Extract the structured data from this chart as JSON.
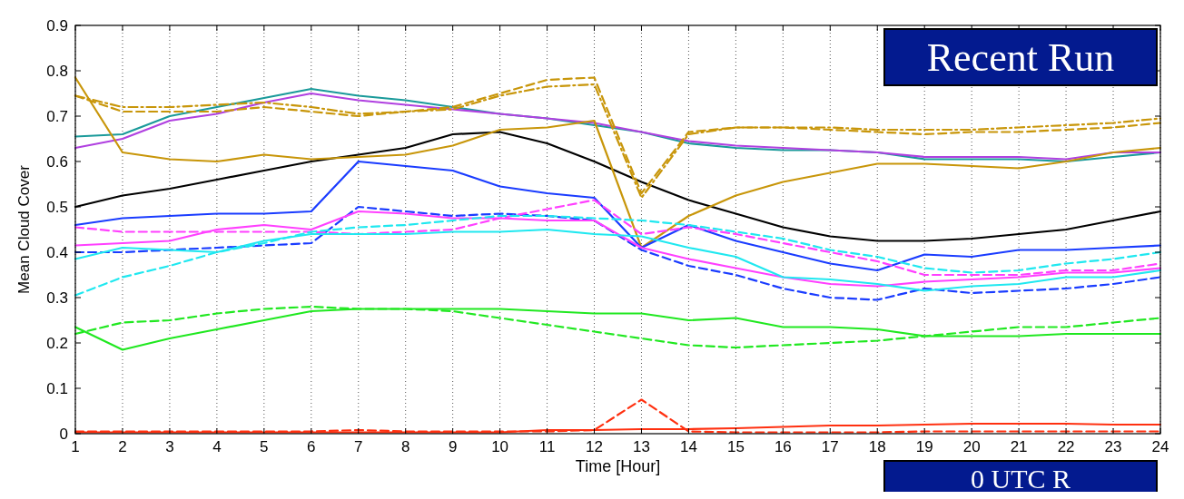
{
  "chart_data": {
    "type": "line",
    "xlabel": "Time [Hour]",
    "ylabel": "Mean Cloud Cover",
    "x": [
      1,
      2,
      3,
      4,
      5,
      6,
      7,
      8,
      9,
      10,
      11,
      12,
      13,
      14,
      15,
      16,
      17,
      18,
      19,
      20,
      21,
      22,
      23,
      24
    ],
    "xlim": [
      1,
      24
    ],
    "xticks": [
      1,
      2,
      3,
      4,
      5,
      6,
      7,
      8,
      9,
      10,
      11,
      12,
      13,
      14,
      15,
      16,
      17,
      18,
      19,
      20,
      21,
      22,
      23,
      24
    ],
    "ylim": [
      0,
      0.9
    ],
    "yticks": [
      0,
      0.1,
      0.2,
      0.3,
      0.4,
      0.5,
      0.6,
      0.7,
      0.8,
      0.9
    ],
    "grid": "x",
    "marker": "none",
    "annotations": [
      "Recent Run",
      "0 UTC R"
    ],
    "series": [
      {
        "color": "#000000",
        "line_style": "solid",
        "values": [
          0.5,
          0.525,
          0.54,
          0.56,
          0.58,
          0.6,
          0.615,
          0.63,
          0.66,
          0.665,
          0.64,
          0.6,
          0.555,
          0.515,
          0.485,
          0.455,
          0.435,
          0.425,
          0.425,
          0.43,
          0.44,
          0.45,
          0.47,
          0.49
        ]
      },
      {
        "color": "#1a9a9a",
        "line_style": "solid",
        "values": [
          0.655,
          0.66,
          0.7,
          0.72,
          0.74,
          0.76,
          0.745,
          0.735,
          0.72,
          0.705,
          0.695,
          0.68,
          0.665,
          0.64,
          0.63,
          0.625,
          0.625,
          0.62,
          0.605,
          0.605,
          0.605,
          0.6,
          0.61,
          0.62
        ]
      },
      {
        "color": "#b040e0",
        "line_style": "solid",
        "values": [
          0.63,
          0.65,
          0.69,
          0.705,
          0.73,
          0.75,
          0.735,
          0.725,
          0.715,
          0.705,
          0.695,
          0.685,
          0.665,
          0.645,
          0.635,
          0.63,
          0.625,
          0.62,
          0.61,
          0.61,
          0.61,
          0.605,
          0.62,
          0.62
        ]
      },
      {
        "color": "#c8960a",
        "line_style": "solid",
        "values": [
          0.785,
          0.62,
          0.605,
          0.6,
          0.615,
          0.605,
          0.61,
          0.615,
          0.635,
          0.67,
          0.675,
          0.69,
          0.41,
          0.48,
          0.525,
          0.555,
          0.575,
          0.595,
          0.595,
          0.59,
          0.585,
          0.6,
          0.62,
          0.63
        ]
      },
      {
        "color": "#c8960a",
        "line_style": "dashed",
        "values": [
          0.745,
          0.71,
          0.71,
          0.71,
          0.72,
          0.71,
          0.7,
          0.71,
          0.72,
          0.75,
          0.78,
          0.785,
          0.53,
          0.665,
          0.675,
          0.675,
          0.67,
          0.665,
          0.66,
          0.665,
          0.665,
          0.67,
          0.675,
          0.685
        ]
      },
      {
        "color": "#c8960a",
        "line_style": "dashdot",
        "values": [
          0.745,
          0.72,
          0.72,
          0.725,
          0.73,
          0.72,
          0.705,
          0.71,
          0.715,
          0.745,
          0.765,
          0.77,
          0.52,
          0.66,
          0.675,
          0.675,
          0.675,
          0.67,
          0.67,
          0.67,
          0.675,
          0.68,
          0.685,
          0.695
        ]
      },
      {
        "color": "#1a3cff",
        "line_style": "solid",
        "values": [
          0.46,
          0.475,
          0.48,
          0.485,
          0.485,
          0.49,
          0.6,
          0.59,
          0.58,
          0.545,
          0.53,
          0.52,
          0.41,
          0.46,
          0.425,
          0.4,
          0.375,
          0.36,
          0.395,
          0.39,
          0.405,
          0.405,
          0.41,
          0.415
        ]
      },
      {
        "color": "#1a3cff",
        "line_style": "dashed",
        "values": [
          0.4,
          0.4,
          0.405,
          0.41,
          0.415,
          0.42,
          0.5,
          0.49,
          0.48,
          0.485,
          0.48,
          0.47,
          0.405,
          0.37,
          0.35,
          0.32,
          0.3,
          0.295,
          0.32,
          0.31,
          0.315,
          0.32,
          0.33,
          0.345
        ]
      },
      {
        "color": "#ff40ff",
        "line_style": "solid",
        "values": [
          0.415,
          0.42,
          0.425,
          0.45,
          0.46,
          0.45,
          0.49,
          0.485,
          0.475,
          0.475,
          0.47,
          0.47,
          0.41,
          0.385,
          0.365,
          0.345,
          0.33,
          0.325,
          0.335,
          0.34,
          0.345,
          0.355,
          0.355,
          0.365
        ]
      },
      {
        "color": "#ff40ff",
        "line_style": "dashed",
        "values": [
          0.455,
          0.445,
          0.445,
          0.445,
          0.445,
          0.445,
          0.44,
          0.445,
          0.45,
          0.475,
          0.495,
          0.515,
          0.44,
          0.455,
          0.44,
          0.42,
          0.4,
          0.38,
          0.35,
          0.35,
          0.35,
          0.36,
          0.36,
          0.375
        ]
      },
      {
        "color": "#20e8f0",
        "line_style": "solid",
        "values": [
          0.385,
          0.41,
          0.405,
          0.4,
          0.425,
          0.44,
          0.44,
          0.44,
          0.445,
          0.445,
          0.45,
          0.44,
          0.435,
          0.41,
          0.39,
          0.345,
          0.34,
          0.33,
          0.315,
          0.325,
          0.33,
          0.345,
          0.345,
          0.36
        ]
      },
      {
        "color": "#20e8f0",
        "line_style": "dashed",
        "values": [
          0.305,
          0.345,
          0.37,
          0.4,
          0.42,
          0.445,
          0.455,
          0.46,
          0.47,
          0.48,
          0.48,
          0.475,
          0.47,
          0.46,
          0.445,
          0.43,
          0.405,
          0.39,
          0.365,
          0.355,
          0.36,
          0.375,
          0.385,
          0.4
        ]
      },
      {
        "color": "#20e820",
        "line_style": "solid",
        "values": [
          0.235,
          0.185,
          0.21,
          0.23,
          0.25,
          0.27,
          0.275,
          0.275,
          0.275,
          0.275,
          0.27,
          0.265,
          0.265,
          0.25,
          0.255,
          0.235,
          0.235,
          0.23,
          0.215,
          0.215,
          0.215,
          0.22,
          0.22,
          0.22
        ]
      },
      {
        "color": "#20e820",
        "line_style": "dashed",
        "values": [
          0.22,
          0.245,
          0.25,
          0.265,
          0.275,
          0.28,
          0.275,
          0.275,
          0.27,
          0.255,
          0.24,
          0.225,
          0.21,
          0.195,
          0.19,
          0.195,
          0.2,
          0.205,
          0.215,
          0.225,
          0.235,
          0.235,
          0.245,
          0.255
        ]
      },
      {
        "color": "#ff3010",
        "line_style": "solid",
        "values": [
          0.003,
          0.003,
          0.003,
          0.003,
          0.003,
          0.003,
          0.003,
          0.003,
          0.003,
          0.003,
          0.008,
          0.008,
          0.01,
          0.01,
          0.012,
          0.015,
          0.018,
          0.018,
          0.02,
          0.022,
          0.022,
          0.022,
          0.02,
          0.02
        ]
      },
      {
        "color": "#ff3010",
        "line_style": "dashed",
        "values": [
          0.005,
          0.005,
          0.005,
          0.005,
          0.005,
          0.005,
          0.008,
          0.005,
          0.005,
          0.005,
          0.005,
          0.008,
          0.075,
          0.005,
          0.003,
          0.003,
          0.003,
          0.003,
          0.005,
          0.005,
          0.005,
          0.005,
          0.005,
          0.005
        ]
      }
    ]
  }
}
